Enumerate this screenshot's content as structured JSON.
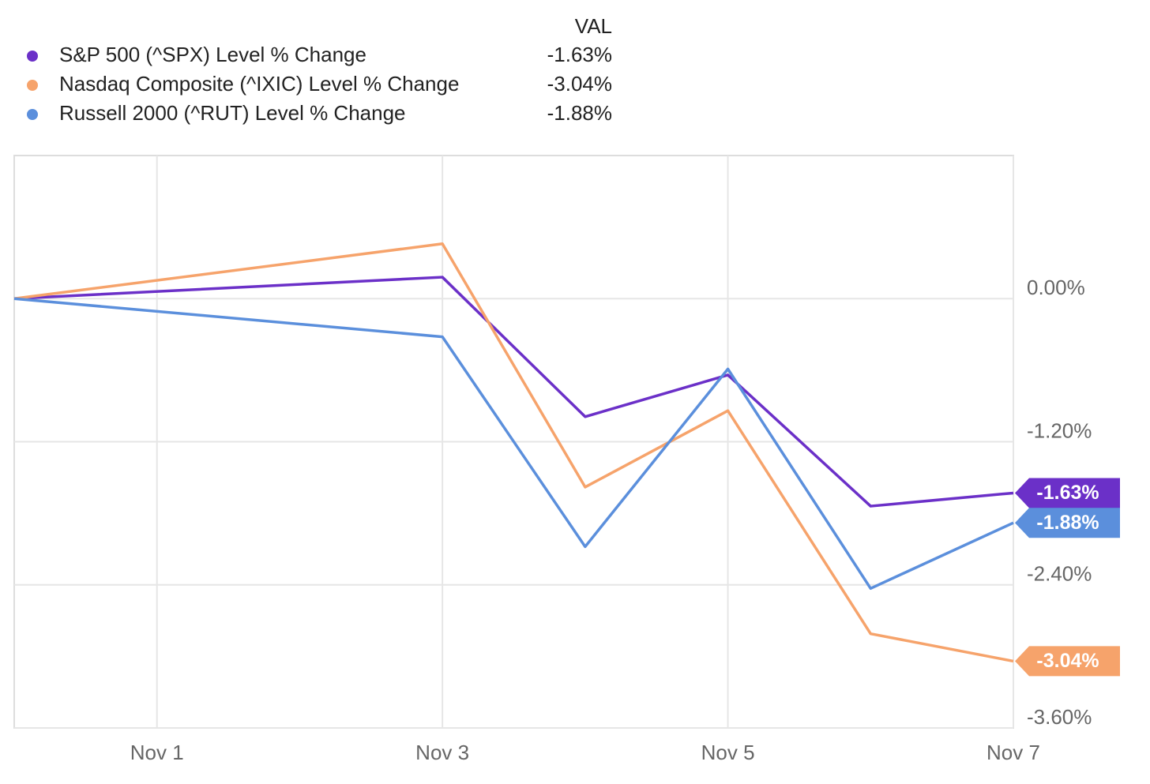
{
  "chart_data": {
    "type": "line",
    "legend_value_header": "VAL",
    "x": [
      "Oct 31",
      "Nov 3",
      "Nov 4",
      "Nov 5",
      "Nov 6",
      "Nov 7"
    ],
    "xlim": [
      "Oct 31",
      "Nov 7"
    ],
    "xticks": [
      "Nov 1",
      "Nov 3",
      "Nov 5",
      "Nov 7"
    ],
    "ylim": [
      -3.6,
      1.2
    ],
    "yticks": [
      {
        "value": 0,
        "label": "0.00%"
      },
      {
        "value": -1.2,
        "label": "-1.20%"
      },
      {
        "value": -2.4,
        "label": "-2.40%"
      },
      {
        "value": -3.6,
        "label": "-3.60%"
      }
    ],
    "grid": true,
    "series": [
      {
        "name": "S&P 500 (^SPX) Level % Change",
        "color": "#6b30c8",
        "values": [
          0,
          0.18,
          -0.99,
          -0.64,
          -1.74,
          -1.63
        ],
        "last_label": "-1.63%"
      },
      {
        "name": "Nasdaq Composite (^IXIC) Level % Change",
        "color": "#f6a36b",
        "values": [
          0,
          0.46,
          -1.58,
          -0.94,
          -2.81,
          -3.04
        ],
        "last_label": "-3.04%"
      },
      {
        "name": "Russell 2000 (^RUT) Level % Change",
        "color": "#5b8fdc",
        "values": [
          0,
          -0.32,
          -2.08,
          -0.59,
          -2.43,
          -1.88
        ],
        "last_label": "-1.88%"
      }
    ]
  }
}
